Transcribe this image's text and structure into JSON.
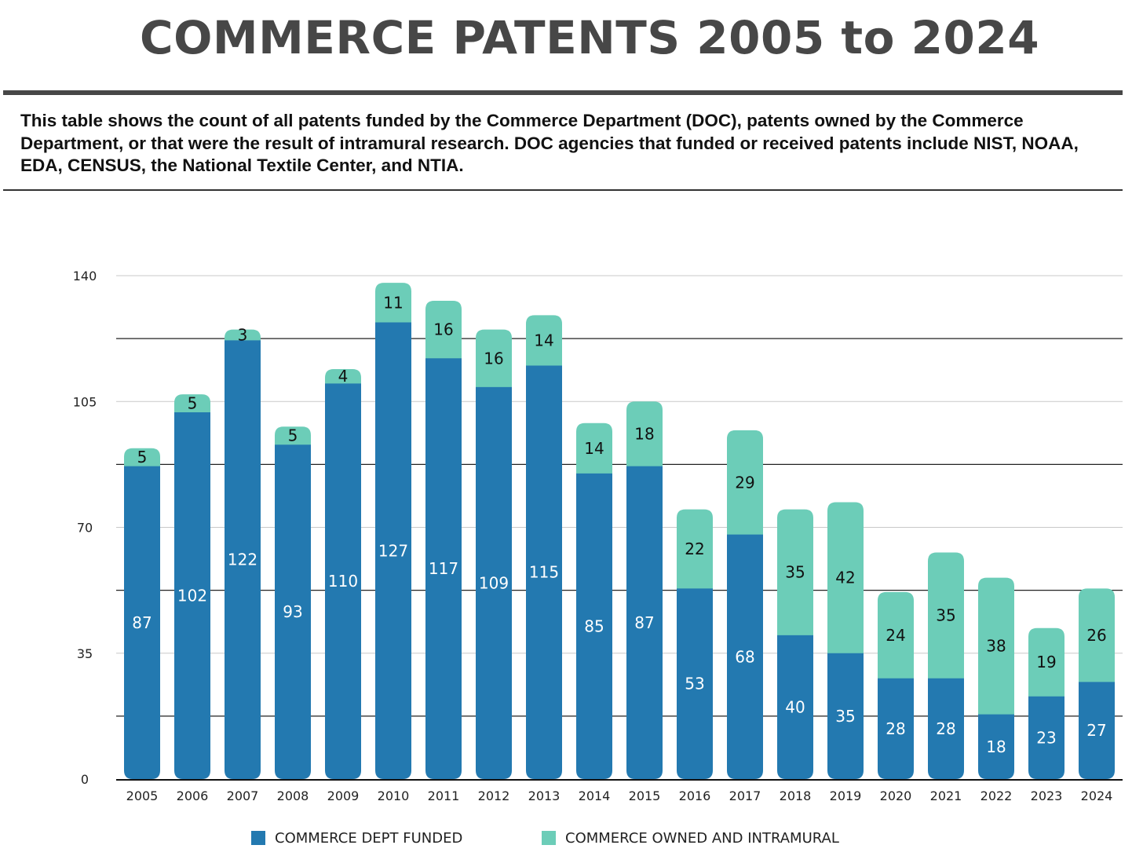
{
  "chart_data": {
    "type": "bar",
    "stacked": true,
    "title": "COMMERCE PATENTS 2005 to 2024",
    "subtitle": "This table shows the count of all patents funded by the Commerce Department (DOC), patents owned by the Commerce Department, or that were the result of intramural research.  DOC agencies that funded or received patents include NIST, NOAA, EDA, CENSUS, the National Textile Center, and NTIA.",
    "xlabel": "",
    "ylabel": "",
    "ylim": [
      0,
      140
    ],
    "yticks": [
      0,
      35,
      70,
      105,
      140
    ],
    "grid": true,
    "legend_position": "bottom",
    "categories": [
      "2005",
      "2006",
      "2007",
      "2008",
      "2009",
      "2010",
      "2011",
      "2012",
      "2013",
      "2014",
      "2015",
      "2016",
      "2017",
      "2018",
      "2019",
      "2020",
      "2021",
      "2022",
      "2023",
      "2024"
    ],
    "series": [
      {
        "name": "COMMERCE DEPT FUNDED",
        "color": "#2379b0",
        "values": [
          87,
          102,
          122,
          93,
          110,
          127,
          117,
          109,
          115,
          85,
          87,
          53,
          68,
          40,
          35,
          28,
          28,
          18,
          23,
          27
        ]
      },
      {
        "name": "COMMERCE OWNED AND INTRAMURAL",
        "color": "#6ccdb8",
        "values": [
          5,
          5,
          3,
          5,
          4,
          11,
          16,
          16,
          14,
          14,
          18,
          22,
          29,
          35,
          42,
          24,
          35,
          38,
          19,
          26
        ]
      }
    ]
  }
}
